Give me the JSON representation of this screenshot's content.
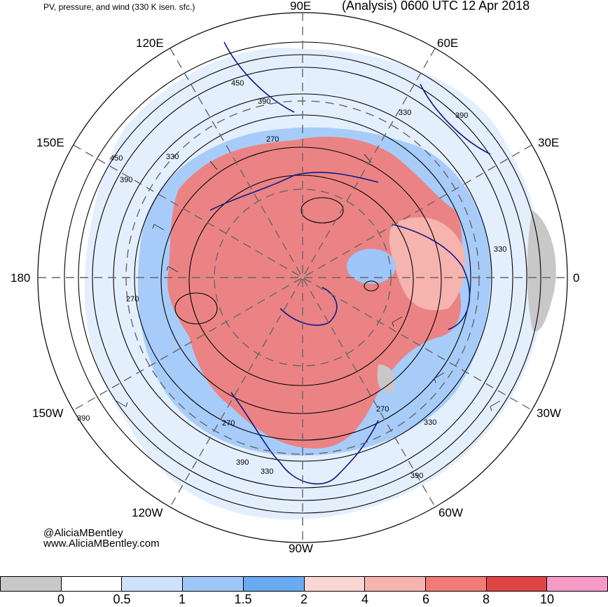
{
  "header": {
    "left_title": "PV, pressure, and wind (330 K isen. sfc.)",
    "right_title": "(Analysis) 0600 UTC 12 Apr 2018"
  },
  "longitude_labels": {
    "e90": "90E",
    "e60": "60E",
    "e120": "120E",
    "e150": "150E",
    "e30": "30E",
    "d180": "180",
    "d0": "0",
    "w150": "150W",
    "w30": "30W",
    "w120": "120W",
    "w60": "60W",
    "w90": "90W"
  },
  "contour_labels": [
    "450",
    "390",
    "270",
    "330",
    "390",
    "450",
    "330",
    "390",
    "270",
    "330",
    "270",
    "390",
    "270",
    "330",
    "390",
    "390",
    "330"
  ],
  "credit": {
    "handle": "@AliciaMBentley",
    "site": "www.AliciaMBentley.com"
  },
  "colorbar": {
    "colors": [
      "#c8c8c8",
      "#ffffff",
      "#cfe1fb",
      "#9ec6f8",
      "#6aaaf2",
      "#f9d6d3",
      "#f7b3ae",
      "#f27b78",
      "#e04546",
      "#f49bc8"
    ],
    "ticks": [
      "0",
      "0.5",
      "1",
      "1.5",
      "2",
      "4",
      "6",
      "8",
      "10"
    ]
  }
}
